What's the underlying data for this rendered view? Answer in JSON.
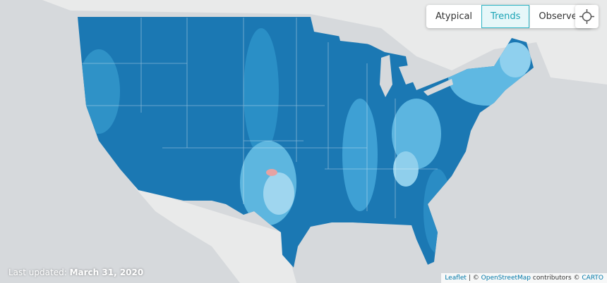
{
  "controls": {
    "buttons": [
      "Atypical",
      "Trends",
      "Observed"
    ],
    "active": "Trends"
  },
  "footer": {
    "label": "Last updated:",
    "date": "March 31, 2020"
  },
  "attribution": {
    "leaflet": "Leaflet",
    "separator": "|",
    "copy1": "©",
    "osm": "OpenStreetMap",
    "contributors": "contributors ©",
    "carto": "CARTO"
  }
}
